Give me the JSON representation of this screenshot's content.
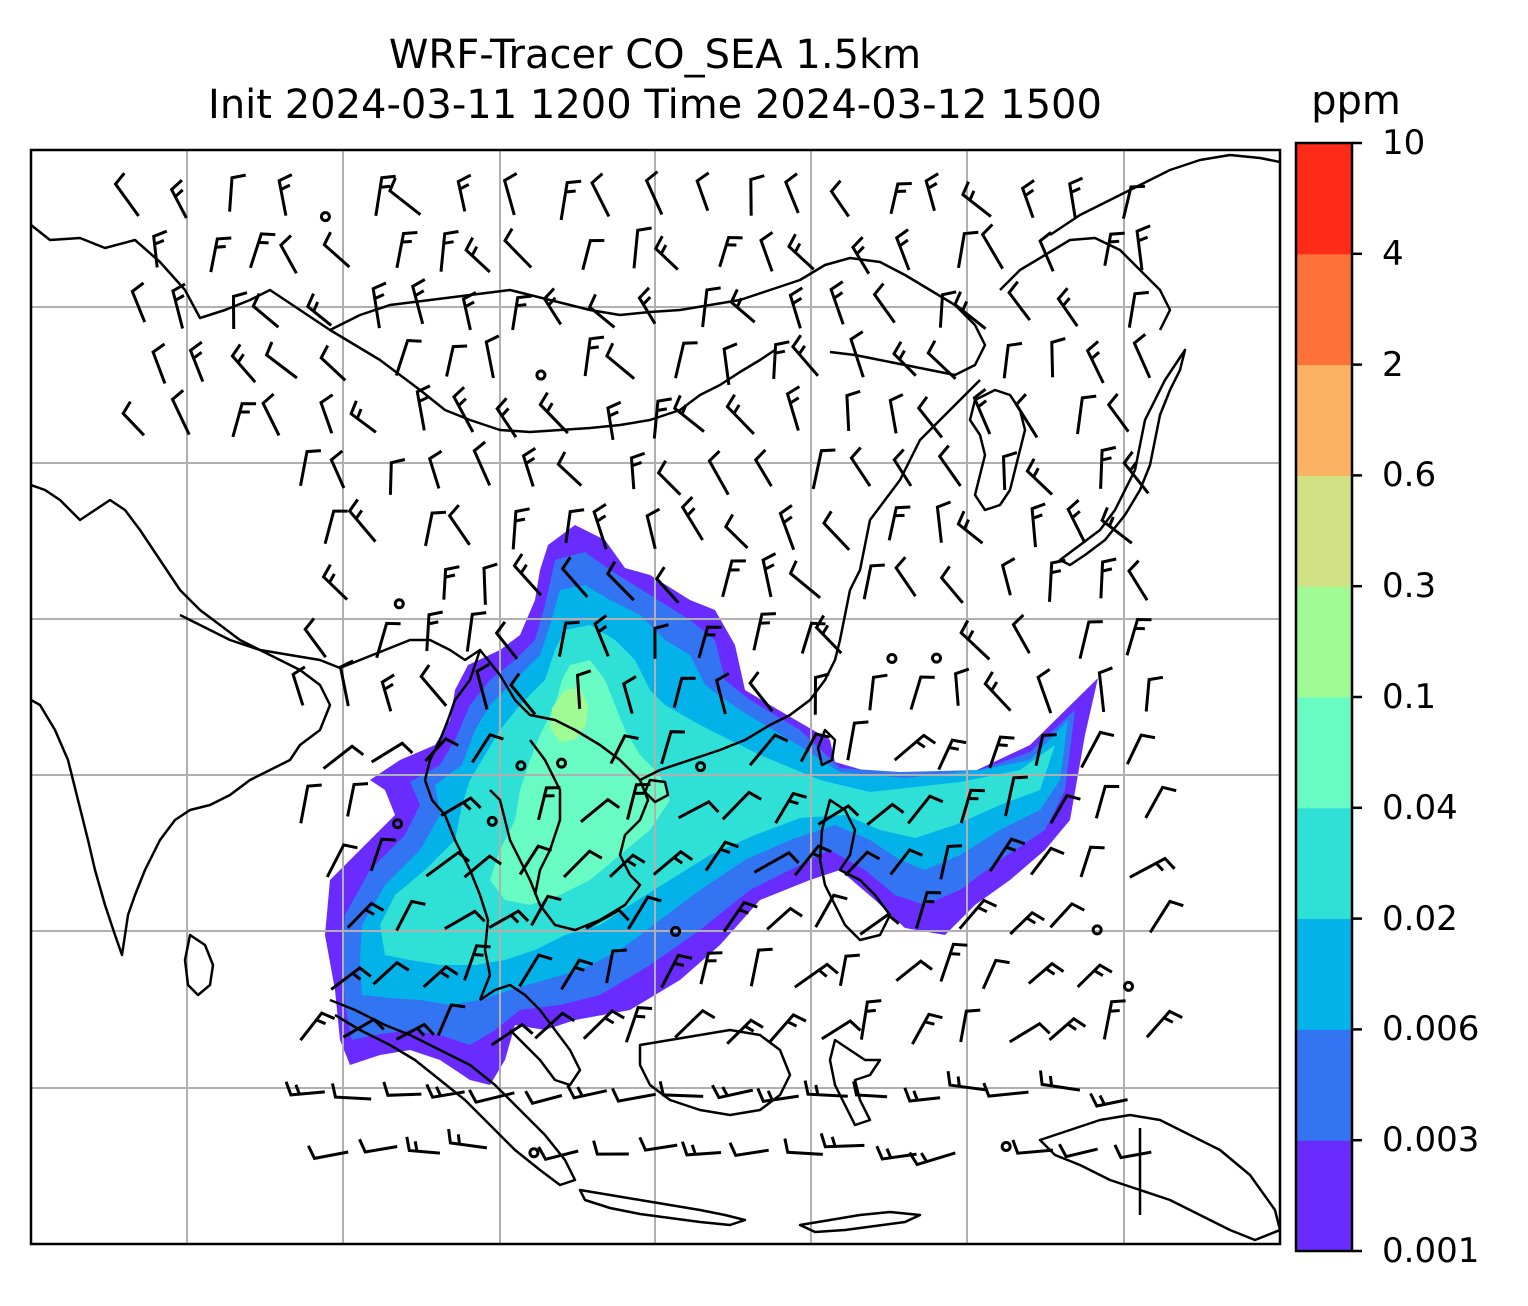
{
  "title": {
    "line1": "WRF-Tracer CO_SEA 1.5km",
    "line2": "Init 2024-03-11 1200 Time 2024-03-12 1500"
  },
  "colorbar": {
    "unit": "ppm",
    "levels": [
      "0.001",
      "0.003",
      "0.006",
      "0.02",
      "0.04",
      "0.1",
      "0.3",
      "0.6",
      "2",
      "4",
      "10"
    ],
    "colors": [
      "#6a2bff",
      "#3374f2",
      "#04b2ea",
      "#2fe0d6",
      "#68fbc3",
      "#9ffb94",
      "#d1e183",
      "#fdb162",
      "#ff7237",
      "#ff2a17"
    ]
  },
  "map": {
    "background": "#ffffff",
    "coastline_color": "#000000",
    "gridline_color": "#b0b0b0",
    "wind_barb_color": "#000000"
  }
}
